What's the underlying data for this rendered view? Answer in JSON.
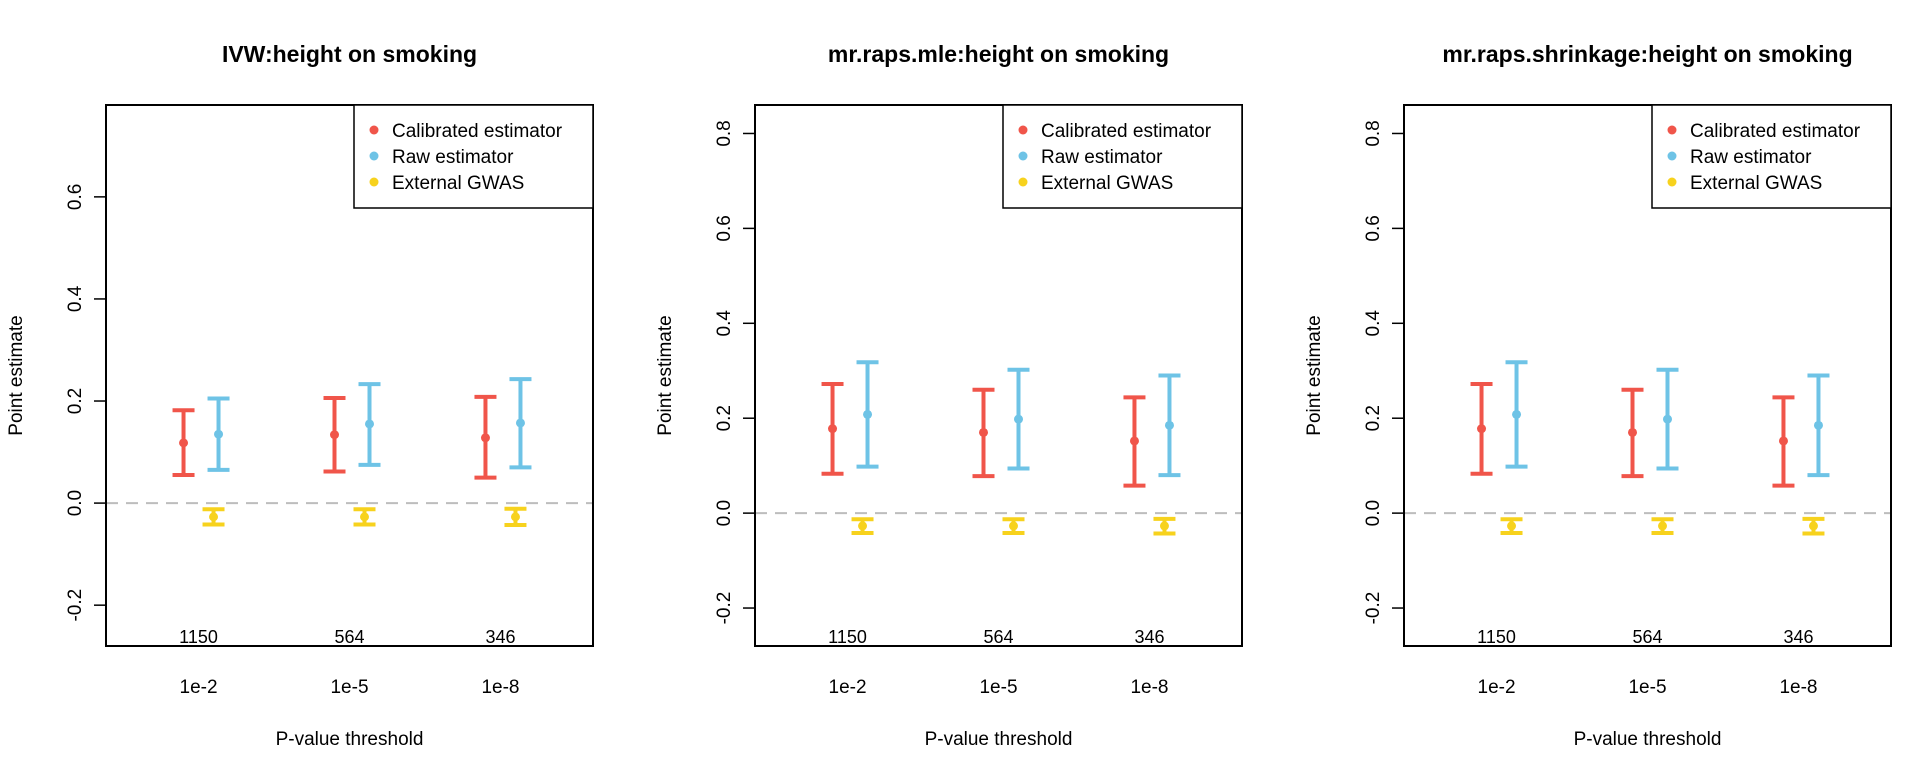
{
  "colors": {
    "calibrated": "#f0554a",
    "raw": "#6ec3e6",
    "external": "#f7d21d",
    "zero_line": "#bdbdbd"
  },
  "chart_data": [
    {
      "type": "errorbar",
      "title": "IVW:height on smoking",
      "xlabel": "P-value threshold",
      "ylabel": "Point estimate",
      "categories": [
        "1e-2",
        "1e-5",
        "1e-8"
      ],
      "counts": [
        "1150",
        "564",
        "346"
      ],
      "ylim": [
        -0.28,
        0.78
      ],
      "yticks": [
        "-0.2",
        "0.0",
        "0.2",
        "0.4",
        "0.6"
      ],
      "reference_line": 0,
      "legend": [
        "Calibrated estimator",
        "Raw estimator",
        "External GWAS"
      ],
      "legend_position": "top-right",
      "series": [
        {
          "name": "Calibrated estimator",
          "estimate": [
            0.118,
            0.134,
            0.128
          ],
          "lower": [
            0.055,
            0.062,
            0.05
          ],
          "upper": [
            0.182,
            0.206,
            0.208
          ]
        },
        {
          "name": "Raw estimator",
          "estimate": [
            0.135,
            0.155,
            0.157
          ],
          "lower": [
            0.065,
            0.075,
            0.07
          ],
          "upper": [
            0.205,
            0.233,
            0.243
          ]
        },
        {
          "name": "External GWAS",
          "estimate": [
            -0.027,
            -0.027,
            -0.027
          ],
          "lower": [
            -0.042,
            -0.042,
            -0.043
          ],
          "upper": [
            -0.012,
            -0.012,
            -0.011
          ]
        }
      ]
    },
    {
      "type": "errorbar",
      "title": "mr.raps.mle:height on smoking",
      "xlabel": "P-value threshold",
      "ylabel": "Point estimate",
      "categories": [
        "1e-2",
        "1e-5",
        "1e-8"
      ],
      "counts": [
        "1150",
        "564",
        "346"
      ],
      "ylim": [
        -0.28,
        0.86
      ],
      "yticks": [
        "-0.2",
        "0.0",
        "0.2",
        "0.4",
        "0.6",
        "0.8"
      ],
      "reference_line": 0,
      "legend": [
        "Calibrated estimator",
        "Raw estimator",
        "External GWAS"
      ],
      "legend_position": "top-right",
      "series": [
        {
          "name": "Calibrated estimator",
          "estimate": [
            0.178,
            0.17,
            0.152
          ],
          "lower": [
            0.083,
            0.078,
            0.058
          ],
          "upper": [
            0.272,
            0.26,
            0.244
          ]
        },
        {
          "name": "Raw estimator",
          "estimate": [
            0.208,
            0.198,
            0.185
          ],
          "lower": [
            0.098,
            0.094,
            0.08
          ],
          "upper": [
            0.318,
            0.302,
            0.29
          ]
        },
        {
          "name": "External GWAS",
          "estimate": [
            -0.027,
            -0.027,
            -0.027
          ],
          "lower": [
            -0.042,
            -0.042,
            -0.043
          ],
          "upper": [
            -0.013,
            -0.013,
            -0.012
          ]
        }
      ]
    },
    {
      "type": "errorbar",
      "title": "mr.raps.shrinkage:height on smoking",
      "xlabel": "P-value threshold",
      "ylabel": "Point estimate",
      "categories": [
        "1e-2",
        "1e-5",
        "1e-8"
      ],
      "counts": [
        "1150",
        "564",
        "346"
      ],
      "ylim": [
        -0.28,
        0.86
      ],
      "yticks": [
        "-0.2",
        "0.0",
        "0.2",
        "0.4",
        "0.6",
        "0.8"
      ],
      "reference_line": 0,
      "legend": [
        "Calibrated estimator",
        "Raw estimator",
        "External GWAS"
      ],
      "legend_position": "top-right",
      "series": [
        {
          "name": "Calibrated estimator",
          "estimate": [
            0.178,
            0.17,
            0.152
          ],
          "lower": [
            0.083,
            0.078,
            0.058
          ],
          "upper": [
            0.272,
            0.26,
            0.244
          ]
        },
        {
          "name": "Raw estimator",
          "estimate": [
            0.208,
            0.198,
            0.185
          ],
          "lower": [
            0.098,
            0.094,
            0.08
          ],
          "upper": [
            0.318,
            0.302,
            0.29
          ]
        },
        {
          "name": "External GWAS",
          "estimate": [
            -0.027,
            -0.027,
            -0.027
          ],
          "lower": [
            -0.042,
            -0.042,
            -0.043
          ],
          "upper": [
            -0.013,
            -0.013,
            -0.012
          ]
        }
      ]
    }
  ]
}
